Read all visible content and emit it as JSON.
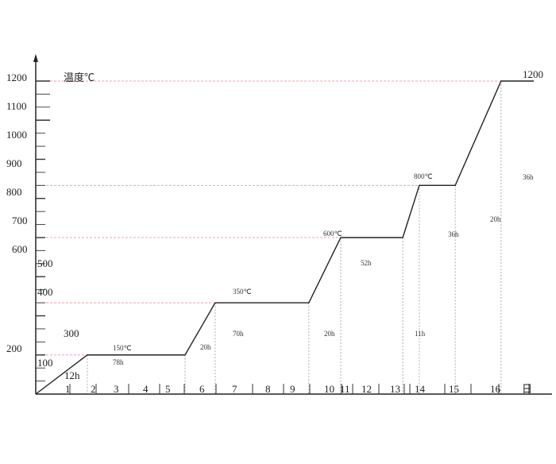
{
  "chart_data": {
    "type": "line",
    "ylabel": "温度℃",
    "xlabel": "日",
    "ylim": [
      0,
      1200
    ],
    "y_tick_labels": [
      "1200",
      "1100",
      "1000",
      "900",
      "800",
      "700",
      "600",
      "500",
      "400",
      "300",
      "200",
      "100"
    ],
    "x_tick_labels": [
      "1",
      "2",
      "3",
      "4",
      "5",
      "6",
      "7",
      "8",
      "9",
      "10",
      "11",
      "12",
      "13",
      "14",
      "15",
      "16",
      "日"
    ],
    "series": [
      {
        "x": [
          0,
          1.78,
          5.15,
          6.19,
          9.42,
          10.52,
          12.66,
          13.23,
          14.47,
          16.05,
          17.18
        ],
        "y": [
          0,
          150,
          150,
          350,
          350,
          600,
          600,
          800,
          800,
          1200,
          1200
        ]
      }
    ],
    "reference_levels": [
      150,
      350,
      600,
      800,
      1200
    ],
    "reference_line_color": "#f4a0a8",
    "line_color": "#222222",
    "annotations": {
      "t150": "150℃",
      "h78": "78h",
      "h12": "12h",
      "h20a": "20h",
      "t350": "350℃",
      "h70": "70h",
      "h20b": "20h",
      "t600": "600℃",
      "h52": "52h",
      "h11": "11h",
      "t800": "800℃",
      "h36a": "36h",
      "h20c": "20h",
      "h36b": "36h",
      "t1200": "1200"
    }
  }
}
